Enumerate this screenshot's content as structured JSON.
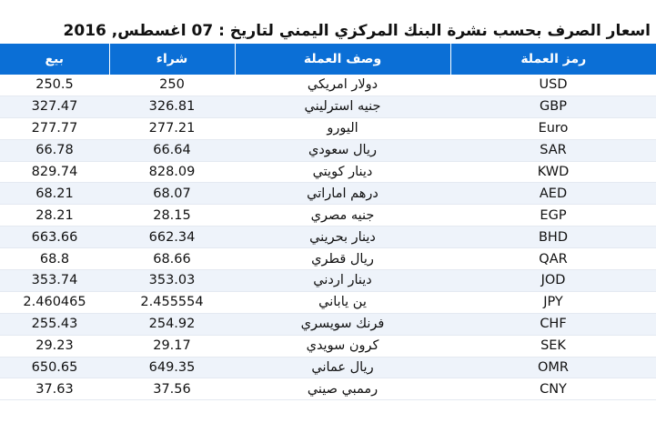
{
  "header": {
    "title": "اسعار الصرف بحسب نشرة البنك المركزي اليمني لتاريخ : 07 اغسطس, 2016"
  },
  "table": {
    "columns": [
      "رمز العملة",
      "وصف العملة",
      "شراء",
      "بيع"
    ],
    "rows": [
      [
        "USD",
        "دولار امريكي",
        "250",
        "250.5"
      ],
      [
        "GBP",
        "جنيه استرليني",
        "326.81",
        "327.47"
      ],
      [
        "Euro",
        "اليورو",
        "277.21",
        "277.77"
      ],
      [
        "SAR",
        "ريال سعودي",
        "66.64",
        "66.78"
      ],
      [
        "KWD",
        "دينار كويتي",
        "828.09",
        "829.74"
      ],
      [
        "AED",
        "درهم اماراتي",
        "68.07",
        "68.21"
      ],
      [
        "EGP",
        "جنيه مصري",
        "28.15",
        "28.21"
      ],
      [
        "BHD",
        "دينار بحريني",
        "662.34",
        "663.66"
      ],
      [
        "QAR",
        "ريال قطري",
        "68.66",
        "68.8"
      ],
      [
        "JOD",
        "دينار اردني",
        "353.03",
        "353.74"
      ],
      [
        "JPY",
        "ين ياباني",
        "2.455554",
        "2.460465"
      ],
      [
        "CHF",
        "فرنك سويسري",
        "254.92",
        "255.43"
      ],
      [
        "SEK",
        "كرون سويدي",
        "29.17",
        "29.23"
      ],
      [
        "OMR",
        "ريال عماني",
        "649.35",
        "650.65"
      ],
      [
        "CNY",
        "رممبي صيني",
        "37.56",
        "37.63"
      ]
    ]
  }
}
